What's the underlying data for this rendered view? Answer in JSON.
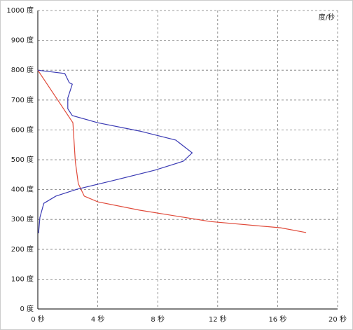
{
  "chart_data": {
    "type": "line",
    "unit_label": "度/秒",
    "xlim": [
      0,
      20
    ],
    "xticks": [
      {
        "value": 0,
        "label": "0 秒"
      },
      {
        "value": 4,
        "label": "4 秒"
      },
      {
        "value": 8,
        "label": "8 秒"
      },
      {
        "value": 12,
        "label": "12 秒"
      },
      {
        "value": 16,
        "label": "16 秒"
      },
      {
        "value": 20,
        "label": "20 秒"
      }
    ],
    "ylim": [
      0,
      1000
    ],
    "yticks": [
      {
        "value": 0,
        "label": "0 度"
      },
      {
        "value": 100,
        "label": "100 度"
      },
      {
        "value": 200,
        "label": "200 度"
      },
      {
        "value": 300,
        "label": "300 度"
      },
      {
        "value": 400,
        "label": "400 度"
      },
      {
        "value": 500,
        "label": "500 度"
      },
      {
        "value": 600,
        "label": "600 度"
      },
      {
        "value": 700,
        "label": "700 度"
      },
      {
        "value": 800,
        "label": "800 度"
      },
      {
        "value": 900,
        "label": "900 度"
      },
      {
        "value": 1000,
        "label": "1000 度"
      }
    ],
    "grid": true,
    "series": [
      {
        "color": "#e04a3a",
        "x": [
          0,
          2.34,
          2.5,
          2.7,
          3.1,
          4,
          6.8,
          11.5,
          16.2,
          17.9
        ],
        "values": [
          800,
          624,
          495,
          420,
          378,
          359,
          331,
          293,
          272,
          256
        ]
      },
      {
        "color": "#3a3ab4",
        "x": [
          0,
          1.8,
          2.1,
          2.3,
          2.0,
          2.0,
          2.3,
          4.0,
          6.8,
          9.2,
          10.3,
          9.7,
          7.8,
          5.0,
          4.0,
          2.6,
          1.2,
          0.4,
          0.14,
          0.05
        ],
        "values": [
          800,
          789,
          758,
          753,
          707,
          671,
          648,
          624,
          596,
          566,
          523,
          495,
          465,
          430,
          418,
          401,
          378,
          354,
          307,
          254
        ]
      }
    ]
  }
}
